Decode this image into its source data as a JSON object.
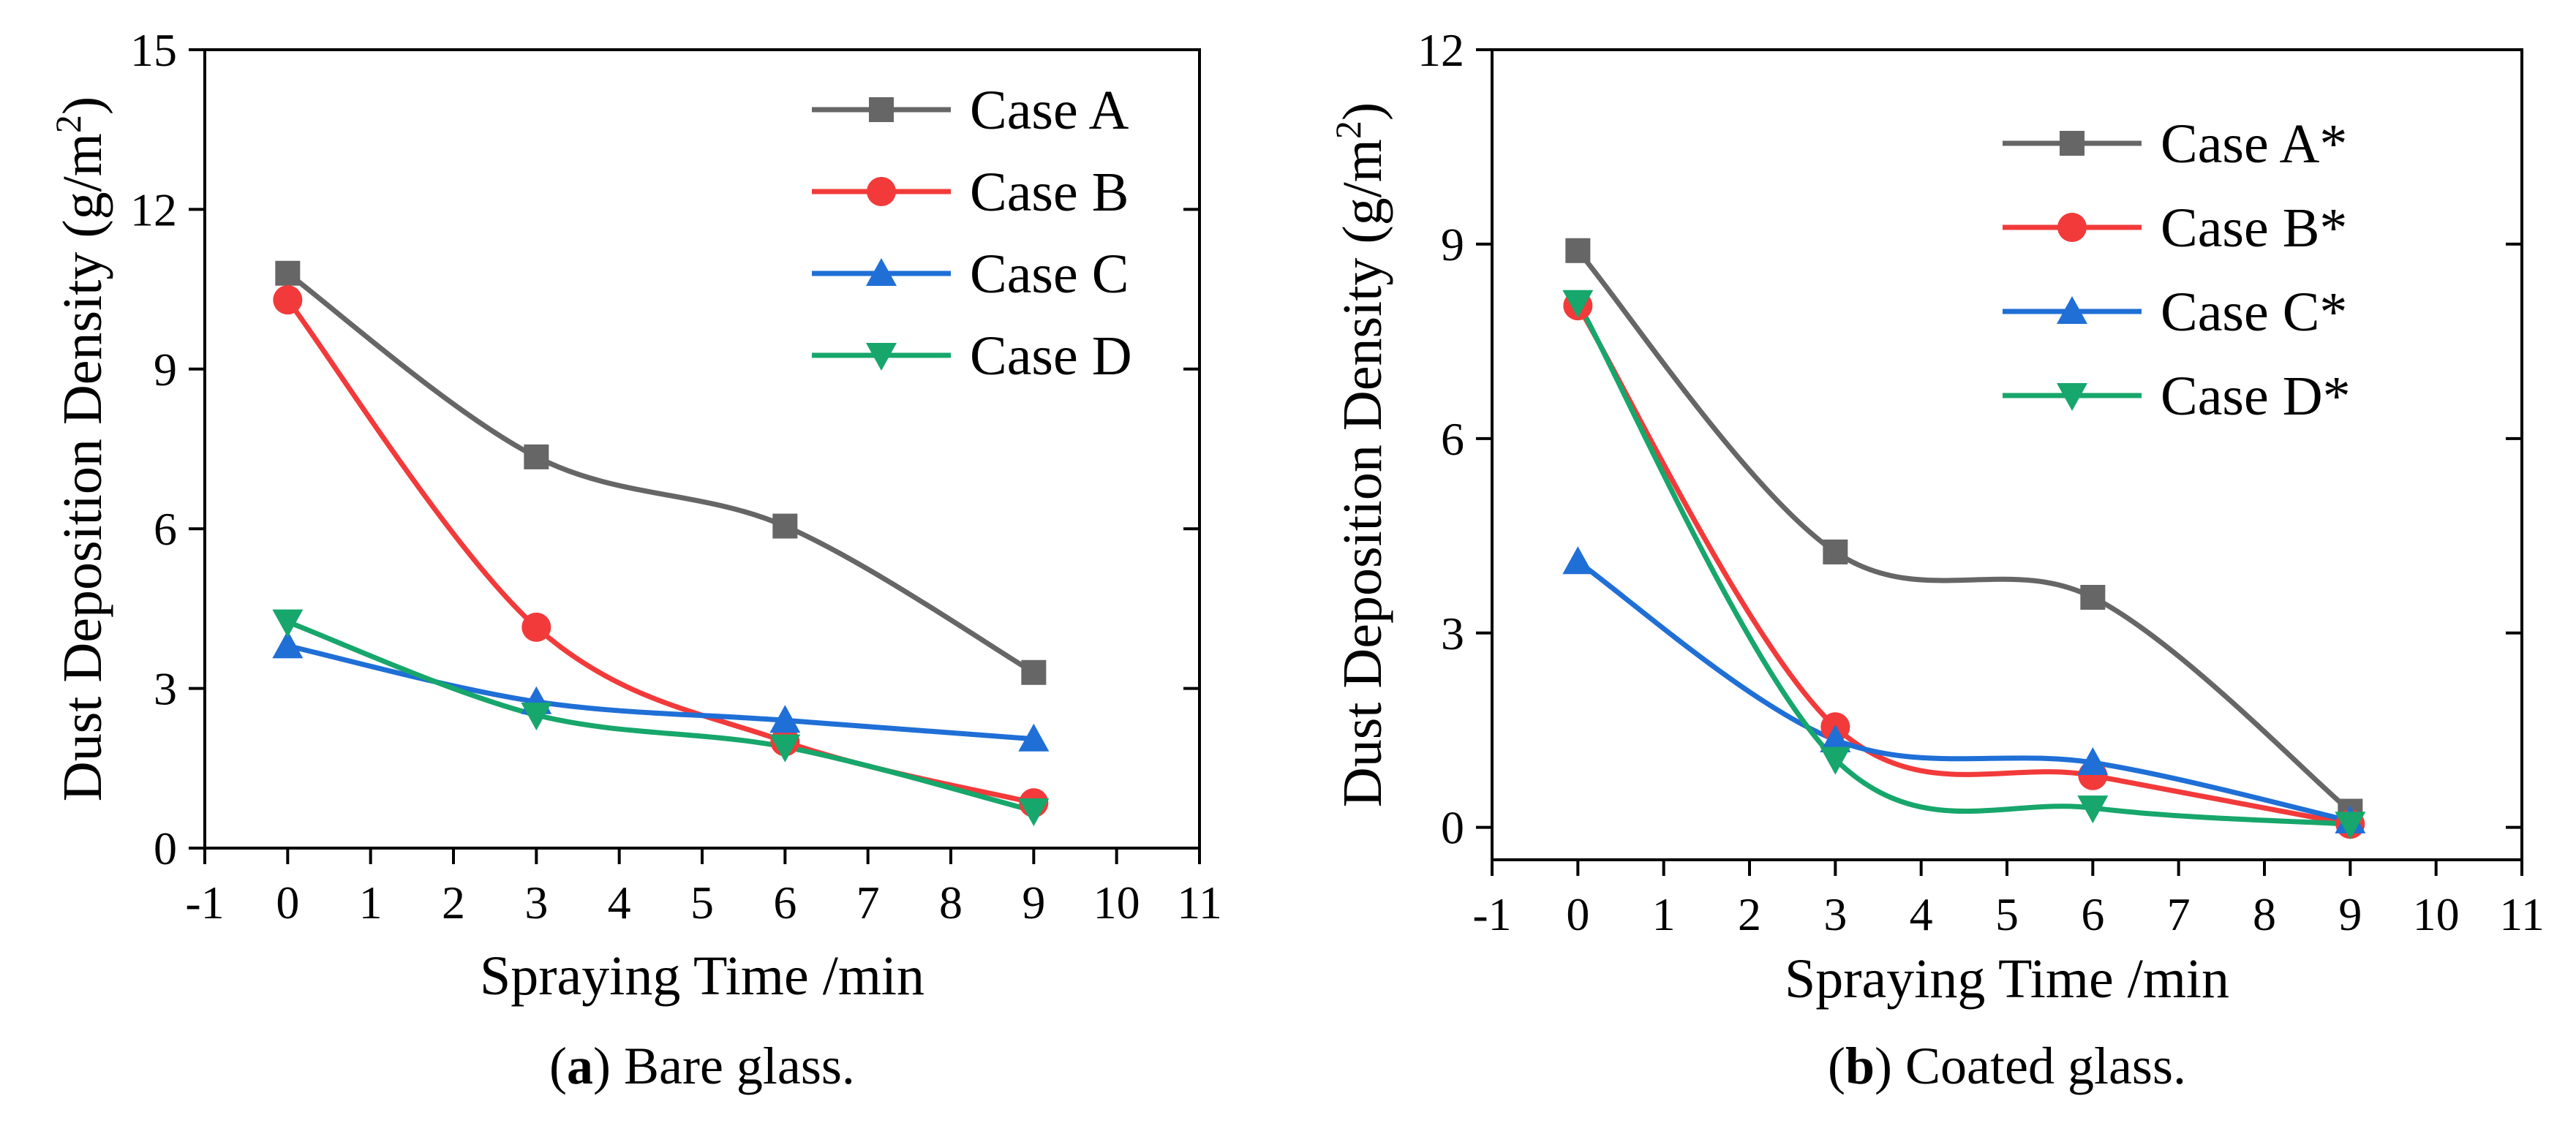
{
  "chart_data": [
    {
      "type": "line",
      "smooth": true,
      "caption_letter": "a",
      "caption_text": "Bare glass.",
      "caption_open": "(",
      "caption_close": ") ",
      "xlabel": "Spraying Time /min",
      "ylabel_main": "Dust Deposition Density (g/m",
      "ylabel_sup": "2",
      "ylabel_close": ")",
      "xlim": [
        -1,
        11
      ],
      "ylim": [
        0,
        15
      ],
      "xticks": [
        -1,
        0,
        1,
        2,
        3,
        4,
        5,
        6,
        7,
        8,
        9,
        10,
        11
      ],
      "yticks": [
        0,
        3,
        6,
        9,
        12,
        15
      ],
      "legend_position": "top-right",
      "series": [
        {
          "name": "Case A",
          "color": "#666666",
          "marker": "square",
          "x": [
            0,
            3,
            6,
            9
          ],
          "y": [
            10.8,
            7.35,
            6.05,
            3.3
          ]
        },
        {
          "name": "Case B",
          "color": "#f23a3a",
          "marker": "circle",
          "x": [
            0,
            3,
            6,
            9
          ],
          "y": [
            10.3,
            4.15,
            2.0,
            0.85
          ]
        },
        {
          "name": "Case C",
          "color": "#1f6fd6",
          "marker": "triangle-up",
          "x": [
            0,
            3,
            6,
            9
          ],
          "y": [
            3.8,
            2.75,
            2.4,
            2.05
          ]
        },
        {
          "name": "Case D",
          "color": "#17a66b",
          "marker": "triangle-down",
          "x": [
            0,
            3,
            6,
            9
          ],
          "y": [
            4.25,
            2.5,
            1.9,
            0.7
          ]
        }
      ]
    },
    {
      "type": "line",
      "smooth": true,
      "caption_letter": "b",
      "caption_text": "Coated glass.",
      "caption_open": "(",
      "caption_close": ") ",
      "xlabel": "Spraying Time /min",
      "ylabel_main": "Dust Deposition Density (g/m",
      "ylabel_sup": "2",
      "ylabel_close": ")",
      "xlim": [
        -1,
        11
      ],
      "ylim": [
        -0.5,
        12
      ],
      "xticks": [
        -1,
        0,
        1,
        2,
        3,
        4,
        5,
        6,
        7,
        8,
        9,
        10,
        11
      ],
      "yticks": [
        0,
        3,
        6,
        9,
        12
      ],
      "legend_position": "top-right",
      "series": [
        {
          "name": "Case A*",
          "color": "#666666",
          "marker": "square",
          "x": [
            0,
            3,
            6,
            9
          ],
          "y": [
            8.9,
            4.25,
            3.55,
            0.25
          ]
        },
        {
          "name": "Case B*",
          "color": "#f23a3a",
          "marker": "circle",
          "x": [
            0,
            3,
            6,
            9
          ],
          "y": [
            8.05,
            1.55,
            0.8,
            0.05
          ]
        },
        {
          "name": "Case C*",
          "color": "#1f6fd6",
          "marker": "triangle-up",
          "x": [
            0,
            3,
            6,
            9
          ],
          "y": [
            4.1,
            1.35,
            1.0,
            0.1
          ]
        },
        {
          "name": "Case D*",
          "color": "#17a66b",
          "marker": "triangle-down",
          "x": [
            0,
            3,
            6,
            9
          ],
          "y": [
            8.1,
            1.05,
            0.3,
            0.05
          ]
        }
      ]
    }
  ]
}
